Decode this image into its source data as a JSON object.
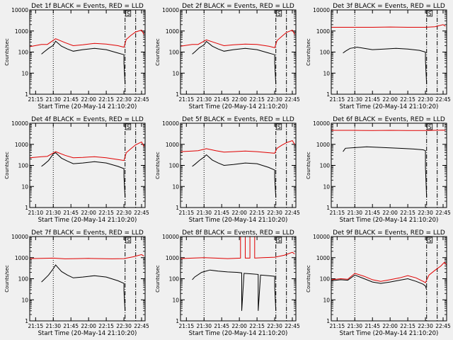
{
  "figure": {
    "background": "#f0f0f0",
    "colors": {
      "events": "#000000",
      "lld": "#e00000",
      "axes": "#000000"
    }
  },
  "chart_data": [
    {
      "type": "line",
      "title": "Det 1f BLACK = Events, RED = LLD",
      "xlabel": "Start Time (20-May-14 21:10:20)",
      "ylabel": "Counts/sec",
      "xticks": [
        "21:15",
        "21:30",
        "21:45",
        "22:00",
        "22:15",
        "22:30",
        "22:45"
      ],
      "yticks": [
        "1",
        "10",
        "100",
        "1000",
        "10000"
      ],
      "ylim": [
        1,
        10000
      ],
      "yscale": "log",
      "markers": {
        "dotted": "21:30",
        "dashdot": [
          "22:31",
          "22:40"
        ],
        "label": "S"
      },
      "series": [
        {
          "name": "LLD",
          "color": "red",
          "t": [
            "21:10",
            "21:20",
            "21:25",
            "21:32",
            "21:40",
            "21:47",
            "21:55",
            "22:05",
            "22:15",
            "22:25",
            "22:30",
            "22:32",
            "22:36",
            "22:40",
            "22:45",
            "22:47"
          ],
          "values": [
            180,
            230,
            230,
            430,
            280,
            200,
            220,
            260,
            240,
            200,
            170,
            400,
            620,
            900,
            1100,
            700
          ]
        },
        {
          "name": "Events",
          "color": "black",
          "t": [
            "21:20",
            "21:22",
            "21:26",
            "21:30",
            "21:32",
            "21:37",
            "21:42",
            "21:47",
            "21:55",
            "22:05",
            "22:15",
            "22:25",
            "22:30",
            "22:30",
            "22:31"
          ],
          "values": [
            80,
            100,
            150,
            210,
            330,
            190,
            140,
            110,
            130,
            150,
            130,
            90,
            75,
            30,
            3
          ]
        }
      ]
    },
    {
      "type": "line",
      "title": "Det 2f BLACK = Events, RED = LLD",
      "xlabel": "Start Time (20-May-14 21:10:20)",
      "ylabel": "Counts/sec",
      "xticks": [
        "21:15",
        "21:30",
        "21:45",
        "22:00",
        "22:15",
        "22:30",
        "22:45"
      ],
      "yticks": [
        "1",
        "10",
        "100",
        "1000",
        "10000"
      ],
      "ylim": [
        1,
        10000
      ],
      "yscale": "log",
      "markers": {
        "dotted": "21:30",
        "dashdot": [
          "22:31",
          "22:40"
        ],
        "label": "S"
      },
      "series": [
        {
          "name": "LLD",
          "color": "red",
          "t": [
            "21:10",
            "21:20",
            "21:25",
            "21:32",
            "21:40",
            "21:47",
            "21:55",
            "22:05",
            "22:15",
            "22:25",
            "22:30",
            "22:32",
            "22:36",
            "22:40",
            "22:45",
            "22:47"
          ],
          "values": [
            190,
            230,
            230,
            380,
            270,
            200,
            220,
            240,
            230,
            190,
            160,
            350,
            550,
            850,
            1100,
            700
          ]
        },
        {
          "name": "Events",
          "color": "black",
          "t": [
            "21:20",
            "21:22",
            "21:26",
            "21:30",
            "21:32",
            "21:37",
            "21:42",
            "21:47",
            "21:55",
            "22:05",
            "22:15",
            "22:25",
            "22:30",
            "22:30",
            "22:31"
          ],
          "values": [
            80,
            100,
            160,
            220,
            320,
            190,
            140,
            110,
            130,
            150,
            130,
            90,
            75,
            30,
            3
          ]
        }
      ]
    },
    {
      "type": "line",
      "title": "Det 3f BLACK = Events, RED = LLD",
      "xlabel": "Start Time (20-May-14 21:10:20)",
      "ylabel": "Counts/sec",
      "xticks": [
        "21:15",
        "21:30",
        "21:45",
        "22:00",
        "22:15",
        "22:30",
        "22:45"
      ],
      "yticks": [
        "1",
        "10",
        "100",
        "1000",
        "10000"
      ],
      "ylim": [
        1,
        10000
      ],
      "yscale": "log",
      "markers": {
        "dotted": "21:30",
        "dashdot": [
          "22:31",
          "22:40"
        ],
        "label": "S"
      },
      "series": [
        {
          "name": "LLD",
          "color": "red",
          "t": [
            "21:10",
            "21:30",
            "21:45",
            "22:00",
            "22:15",
            "22:30",
            "22:38",
            "22:45",
            "22:47"
          ],
          "values": [
            1500,
            1500,
            1500,
            1550,
            1500,
            1500,
            1600,
            2000,
            1700
          ]
        },
        {
          "name": "Events",
          "color": "black",
          "t": [
            "21:20",
            "21:22",
            "21:26",
            "21:32",
            "21:38",
            "21:45",
            "21:55",
            "22:05",
            "22:15",
            "22:25",
            "22:30",
            "22:30",
            "22:31"
          ],
          "values": [
            90,
            110,
            150,
            170,
            150,
            130,
            140,
            150,
            140,
            120,
            100,
            40,
            3
          ]
        }
      ]
    },
    {
      "type": "line",
      "title": "Det 4f BLACK = Events, RED = LLD",
      "xlabel": "Start Time (20-May-14 21:10:20)",
      "ylabel": "Counts/sec",
      "xticks": [
        "21:10",
        "21:30",
        "21:45",
        "22:00",
        "22:15",
        "22:30",
        "22:45"
      ],
      "yticks": [
        "1",
        "10",
        "100",
        "1000",
        "10000"
      ],
      "ylim": [
        1,
        10000
      ],
      "yscale": "log",
      "markers": {
        "dotted": "21:30",
        "dashdot": [
          "22:31",
          "22:40"
        ],
        "label": "S"
      },
      "series": [
        {
          "name": "LLD",
          "color": "red",
          "t": [
            "21:10",
            "21:20",
            "21:25",
            "21:32",
            "21:40",
            "21:47",
            "21:55",
            "22:05",
            "22:15",
            "22:25",
            "22:30",
            "22:32",
            "22:36",
            "22:40",
            "22:45",
            "22:47"
          ],
          "values": [
            230,
            260,
            270,
            450,
            300,
            230,
            240,
            260,
            230,
            190,
            170,
            400,
            620,
            950,
            1300,
            800
          ]
        },
        {
          "name": "Events",
          "color": "black",
          "t": [
            "21:20",
            "21:22",
            "21:26",
            "21:30",
            "21:32",
            "21:37",
            "21:42",
            "21:47",
            "21:55",
            "22:05",
            "22:15",
            "22:25",
            "22:30",
            "22:30",
            "22:31"
          ],
          "values": [
            90,
            110,
            170,
            350,
            400,
            220,
            160,
            120,
            130,
            150,
            130,
            90,
            70,
            30,
            3
          ]
        }
      ]
    },
    {
      "type": "line",
      "title": "Det 5f BLACK = Events, RED = LLD",
      "xlabel": "Start Time (20-May-14 21:10:20)",
      "ylabel": "Counts/sec",
      "xticks": [
        "21:15",
        "21:30",
        "21:45",
        "22:00",
        "22:15",
        "22:30",
        "22:45"
      ],
      "yticks": [
        "1",
        "10",
        "100",
        "1000",
        "10000"
      ],
      "ylim": [
        1,
        10000
      ],
      "yscale": "log",
      "markers": {
        "dotted": "21:30",
        "dashdot": [
          "22:31",
          "22:40"
        ],
        "label": "S"
      },
      "series": [
        {
          "name": "LLD",
          "color": "red",
          "t": [
            "21:10",
            "21:20",
            "21:25",
            "21:32",
            "21:40",
            "21:47",
            "21:55",
            "22:05",
            "22:15",
            "22:25",
            "22:30",
            "22:32",
            "22:36",
            "22:40",
            "22:45",
            "22:47"
          ],
          "values": [
            450,
            480,
            500,
            620,
            500,
            430,
            450,
            480,
            450,
            400,
            380,
            650,
            900,
            1200,
            1500,
            1000
          ]
        },
        {
          "name": "Events",
          "color": "black",
          "t": [
            "21:20",
            "21:22",
            "21:26",
            "21:30",
            "21:32",
            "21:37",
            "21:42",
            "21:47",
            "21:55",
            "22:05",
            "22:15",
            "22:25",
            "22:30",
            "22:30",
            "22:31"
          ],
          "values": [
            90,
            110,
            170,
            250,
            320,
            180,
            130,
            100,
            110,
            130,
            120,
            80,
            60,
            25,
            3
          ]
        }
      ]
    },
    {
      "type": "line",
      "title": "Det 6f BLACK = Events, RED = LLD",
      "xlabel": "Start Time (20-May-14 21:10:20)",
      "ylabel": "Counts/sec",
      "xticks": [
        "21:15",
        "21:30",
        "21:45",
        "22:00",
        "22:15",
        "22:30",
        "22:45"
      ],
      "yticks": [
        "1",
        "10",
        "100",
        "1000",
        "10000"
      ],
      "ylim": [
        1,
        10000
      ],
      "yscale": "log",
      "markers": {
        "dotted": "21:30",
        "dashdot": [
          "22:31",
          "22:40"
        ],
        "label": "S"
      },
      "series": [
        {
          "name": "LLD",
          "color": "red",
          "t": [
            "21:10",
            "21:30",
            "21:45",
            "22:00",
            "22:15",
            "22:30",
            "22:45",
            "22:47"
          ],
          "values": [
            4600,
            4600,
            4500,
            4600,
            4500,
            4500,
            4700,
            4600
          ]
        },
        {
          "name": "Events",
          "color": "black",
          "t": [
            "21:20",
            "21:22",
            "21:30",
            "21:40",
            "21:50",
            "22:00",
            "22:10",
            "22:20",
            "22:28",
            "22:30",
            "22:30",
            "22:31"
          ],
          "values": [
            450,
            650,
            700,
            760,
            720,
            680,
            640,
            600,
            550,
            500,
            80,
            3
          ]
        }
      ]
    },
    {
      "type": "line",
      "title": "Det 7f BLACK = Events, RED = LLD",
      "xlabel": "Start Time (20-May-14 21:10:20)",
      "ylabel": "Counts/sec",
      "xticks": [
        "21:15",
        "21:30",
        "21:45",
        "22:00",
        "22:15",
        "22:30",
        "22:45"
      ],
      "yticks": [
        "1",
        "10",
        "100",
        "1000",
        "10000"
      ],
      "ylim": [
        1,
        10000
      ],
      "yscale": "log",
      "markers": {
        "dotted": "21:30",
        "dashdot": [
          "22:31",
          "22:40"
        ],
        "label": "S"
      },
      "series": [
        {
          "name": "LLD",
          "color": "red",
          "t": [
            "21:10",
            "21:20",
            "21:30",
            "21:40",
            "21:50",
            "22:00",
            "22:10",
            "22:20",
            "22:30",
            "22:38",
            "22:45",
            "22:47"
          ],
          "values": [
            900,
            920,
            950,
            880,
            900,
            920,
            900,
            880,
            900,
            1100,
            1400,
            1200
          ]
        },
        {
          "name": "Events",
          "color": "black",
          "t": [
            "21:20",
            "21:22",
            "21:26",
            "21:30",
            "21:32",
            "21:37",
            "21:42",
            "21:47",
            "21:55",
            "22:05",
            "22:15",
            "22:25",
            "22:30",
            "22:30",
            "22:31"
          ],
          "values": [
            70,
            90,
            150,
            300,
            450,
            220,
            150,
            110,
            120,
            140,
            120,
            80,
            60,
            25,
            3
          ]
        }
      ]
    },
    {
      "type": "line",
      "title": "Det 8f BLACK = Events, RED = LLD",
      "xlabel": "Start Time (20-May-14 21:10:20)",
      "ylabel": "Counts/sec",
      "xticks": [
        "21:15",
        "21:30",
        "21:45",
        "22:00",
        "22:15",
        "22:30",
        "22:45"
      ],
      "yticks": [
        "1",
        "10",
        "100",
        "1000",
        "10000"
      ],
      "ylim": [
        1,
        10000
      ],
      "yscale": "log",
      "markers": {
        "dotted": "21:30",
        "dashdot": [
          "22:31",
          "22:40"
        ],
        "label": "S"
      },
      "series": [
        {
          "name": "LLD",
          "color": "red",
          "t": [
            "21:10",
            "21:20",
            "21:30",
            "21:40",
            "21:50",
            "22:01",
            "22:01",
            "22:05",
            "22:05",
            "22:09",
            "22:09",
            "22:13",
            "22:13",
            "22:20",
            "22:30",
            "22:38",
            "22:45",
            "22:47"
          ],
          "values": [
            900,
            950,
            1000,
            950,
            900,
            950,
            10000,
            10000,
            950,
            950,
            10000,
            10000,
            950,
            1000,
            1050,
            1300,
            1800,
            1500
          ]
        },
        {
          "name": "Events",
          "color": "black",
          "t": [
            "21:20",
            "21:22",
            "21:28",
            "21:35",
            "21:42",
            "21:50",
            "21:58",
            "22:02",
            "22:02",
            "22:04",
            "22:10",
            "22:16",
            "22:16",
            "22:18",
            "22:25",
            "22:30",
            "22:30",
            "22:31"
          ],
          "values": [
            90,
            120,
            200,
            260,
            230,
            210,
            200,
            190,
            3,
            180,
            170,
            160,
            3,
            150,
            140,
            130,
            40,
            3
          ]
        }
      ]
    },
    {
      "type": "line",
      "title": "Det 9f BLACK = Events, RED = LLD",
      "xlabel": "Start Time (20-May-14 21:10:20)",
      "ylabel": "Counts/sec",
      "xticks": [
        "21:15",
        "21:30",
        "21:45",
        "22:00",
        "22:15",
        "22:30",
        "22:45"
      ],
      "yticks": [
        "1",
        "10",
        "100",
        "1000",
        "10000"
      ],
      "ylim": [
        1,
        10000
      ],
      "yscale": "log",
      "markers": {
        "dotted": "21:30",
        "dashdot": [
          "22:31",
          "22:40"
        ],
        "label": "S"
      },
      "series": [
        {
          "name": "LLD",
          "color": "red",
          "t": [
            "21:10",
            "21:18",
            "21:24",
            "21:30",
            "21:38",
            "21:45",
            "21:52",
            "22:00",
            "22:08",
            "22:15",
            "22:22",
            "22:28",
            "22:30",
            "22:33",
            "22:38",
            "22:43",
            "22:46",
            "22:48"
          ],
          "values": [
            90,
            100,
            95,
            180,
            130,
            90,
            75,
            90,
            110,
            140,
            110,
            75,
            65,
            150,
            250,
            400,
            600,
            450
          ]
        },
        {
          "name": "Events",
          "color": "black",
          "t": [
            "21:10",
            "21:18",
            "21:24",
            "21:30",
            "21:38",
            "21:45",
            "21:52",
            "22:00",
            "22:08",
            "22:15",
            "22:22",
            "22:28",
            "22:30",
            "22:31"
          ],
          "values": [
            80,
            90,
            85,
            150,
            100,
            70,
            60,
            70,
            85,
            100,
            75,
            55,
            45,
            30
          ]
        }
      ]
    }
  ]
}
